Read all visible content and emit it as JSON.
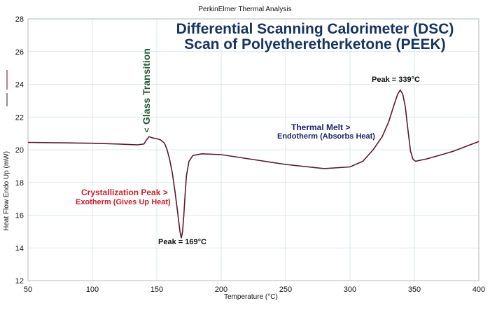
{
  "header": "PerkinElmer Thermal Analysis",
  "title_line1": "Differential Scanning Calorimeter (DSC)",
  "title_line2": "Scan of Polyetheretherketone (PEEK)",
  "annotations": {
    "glass_transition": "Glass Transition",
    "glass_arrow": "<",
    "crystallization": "Crystallization Peak >",
    "exotherm": "Exotherm (Gives Up Heat)",
    "peak_low": "Peak = 169°C",
    "thermal_melt": "Thermal Melt  >",
    "endotherm": "Endotherm (Absorbs Heat)",
    "peak_high": "Peak = 339°C"
  },
  "colors": {
    "curve": "#5a1a2c",
    "grid": "#cfe3ea",
    "title": "#17335f"
  },
  "chart_data": {
    "type": "line",
    "title": "Differential Scanning Calorimeter (DSC) Scan of Polyetheretherketone (PEEK)",
    "xlabel": "Temperature (°C)",
    "ylabel": "Heat Flow Endo Up (mW)",
    "xlim": [
      50,
      400
    ],
    "ylim": [
      12,
      28
    ],
    "xticks": [
      50,
      100,
      150,
      200,
      250,
      300,
      350,
      400
    ],
    "yticks": [
      12,
      14,
      16,
      18,
      20,
      22,
      24,
      26,
      28
    ],
    "grid": true,
    "x": [
      50,
      80,
      100,
      120,
      135,
      140,
      142,
      144,
      147,
      150,
      153,
      156,
      158,
      160,
      162,
      164,
      166,
      168,
      169,
      170,
      171,
      172,
      173,
      175,
      178,
      185,
      200,
      225,
      250,
      280,
      300,
      310,
      318,
      325,
      330,
      334,
      337,
      339,
      341,
      343,
      345,
      347,
      349,
      351,
      360,
      380,
      400
    ],
    "y": [
      20.45,
      20.42,
      20.4,
      20.35,
      20.3,
      20.35,
      20.6,
      20.8,
      20.72,
      20.68,
      20.6,
      20.4,
      20.0,
      19.4,
      18.6,
      17.5,
      16.3,
      15.0,
      14.6,
      15.0,
      16.0,
      17.3,
      18.4,
      19.3,
      19.65,
      19.75,
      19.7,
      19.4,
      19.1,
      18.85,
      18.95,
      19.3,
      20.0,
      20.8,
      21.7,
      22.7,
      23.4,
      23.65,
      23.4,
      22.6,
      21.2,
      19.9,
      19.4,
      19.3,
      19.45,
      19.9,
      20.5
    ]
  }
}
